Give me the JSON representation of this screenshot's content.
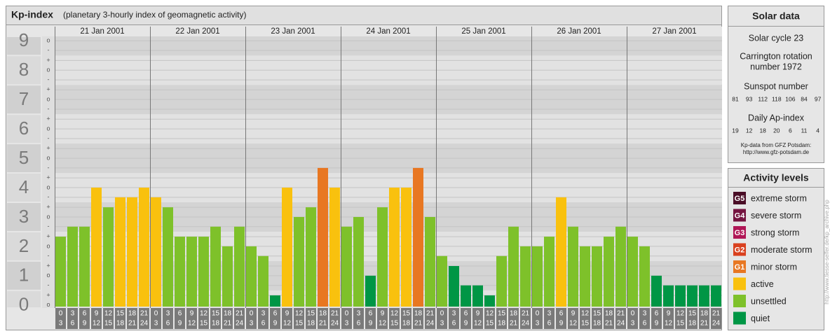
{
  "chart_data": {
    "type": "bar",
    "title": "Kp-index",
    "subtitle": "(planetary 3-hourly index of geomagnetic activity)",
    "categories": [
      "21 Jan 2001",
      "22 Jan 2001",
      "23 Jan 2001",
      "24 Jan 2001",
      "25 Jan 2001",
      "26 Jan 2001",
      "27 Jan 2001"
    ],
    "time_slots": [
      [
        0,
        3
      ],
      [
        3,
        6
      ],
      [
        6,
        9
      ],
      [
        9,
        12
      ],
      [
        12,
        15
      ],
      [
        15,
        18
      ],
      [
        18,
        21
      ],
      [
        21,
        24
      ]
    ],
    "values": [
      [
        2.33,
        2.67,
        2.67,
        4,
        3.33,
        3.67,
        3.67,
        4
      ],
      [
        3.67,
        3.33,
        2.33,
        2.33,
        2.33,
        2.67,
        2,
        2.67
      ],
      [
        2,
        1.67,
        0.33,
        4,
        3,
        3.33,
        4.67,
        4
      ],
      [
        2.67,
        3,
        1,
        3.33,
        4,
        4,
        4.67,
        3
      ],
      [
        1.67,
        1.33,
        0.67,
        0.67,
        0.33,
        1.67,
        2.67,
        2
      ],
      [
        2,
        2.33,
        3.67,
        2.67,
        2,
        2,
        2.33,
        2.67
      ],
      [
        2.33,
        2,
        1,
        0.67,
        0.67,
        0.67,
        0.67,
        0.67
      ]
    ],
    "colors": [
      [
        "#7ec12a",
        "#7ec12a",
        "#7ec12a",
        "#f9c10e",
        "#7ec12a",
        "#f9c10e",
        "#f9c10e",
        "#f9c10e"
      ],
      [
        "#f9c10e",
        "#7ec12a",
        "#7ec12a",
        "#7ec12a",
        "#7ec12a",
        "#7ec12a",
        "#7ec12a",
        "#7ec12a"
      ],
      [
        "#7ec12a",
        "#7ec12a",
        "#009645",
        "#f9c10e",
        "#7ec12a",
        "#7ec12a",
        "#e87722",
        "#f9c10e"
      ],
      [
        "#7ec12a",
        "#7ec12a",
        "#009645",
        "#7ec12a",
        "#f9c10e",
        "#f9c10e",
        "#e87722",
        "#7ec12a"
      ],
      [
        "#7ec12a",
        "#009645",
        "#009645",
        "#009645",
        "#009645",
        "#7ec12a",
        "#7ec12a",
        "#7ec12a"
      ],
      [
        "#7ec12a",
        "#7ec12a",
        "#f9c10e",
        "#7ec12a",
        "#7ec12a",
        "#7ec12a",
        "#7ec12a",
        "#7ec12a"
      ],
      [
        "#7ec12a",
        "#7ec12a",
        "#009645",
        "#009645",
        "#009645",
        "#009645",
        "#009645",
        "#009645"
      ]
    ],
    "ylim": [
      -0.1,
      9.15
    ],
    "yticks": [
      0,
      1,
      2,
      3,
      4,
      5,
      6,
      7,
      8,
      9
    ],
    "minor_yticks": [
      {
        "value": 9,
        "label": "o"
      },
      {
        "value": 8.67,
        "label": "-"
      },
      {
        "value": 8.33,
        "label": "+"
      },
      {
        "value": 8,
        "label": "o"
      },
      {
        "value": 7.67,
        "label": "-"
      },
      {
        "value": 7.33,
        "label": "+"
      },
      {
        "value": 7,
        "label": "o"
      },
      {
        "value": 6.67,
        "label": "-"
      },
      {
        "value": 6.33,
        "label": "+"
      },
      {
        "value": 6,
        "label": "o"
      },
      {
        "value": 5.67,
        "label": "-"
      },
      {
        "value": 5.33,
        "label": "+"
      },
      {
        "value": 5,
        "label": "o"
      },
      {
        "value": 4.67,
        "label": "-"
      },
      {
        "value": 4.33,
        "label": "+"
      },
      {
        "value": 4,
        "label": "o"
      },
      {
        "value": 3.67,
        "label": "-"
      },
      {
        "value": 3.33,
        "label": "+"
      },
      {
        "value": 3,
        "label": "o"
      },
      {
        "value": 2.67,
        "label": "-"
      },
      {
        "value": 2.33,
        "label": "+"
      },
      {
        "value": 2,
        "label": "o"
      },
      {
        "value": 1.67,
        "label": "-"
      },
      {
        "value": 1.33,
        "label": "+"
      },
      {
        "value": 1,
        "label": "o"
      },
      {
        "value": 0.67,
        "label": "-"
      },
      {
        "value": 0.33,
        "label": "+"
      },
      {
        "value": 0,
        "label": "o"
      }
    ],
    "grid": true
  },
  "solar_data": {
    "title": "Solar data",
    "solar_cycle": "Solar cycle 23",
    "carrington": [
      "Carrington rotation",
      "number 1972"
    ],
    "sunspot_label": "Sunspot number",
    "sunspot_numbers": [
      81,
      93,
      112,
      118,
      106,
      84,
      97
    ],
    "ap_label": "Daily Ap-index",
    "ap_values": [
      19,
      12,
      18,
      20,
      6,
      11,
      4
    ],
    "source": [
      "Kp-data from GFZ Potsdam:",
      "http://www.gfz-potsdam.de"
    ]
  },
  "activity_levels": {
    "title": "Activity levels",
    "items": [
      {
        "badge": "G5",
        "label": "extreme storm",
        "color": "#4a0d26"
      },
      {
        "badge": "G4",
        "label": "severe storm",
        "color": "#751440"
      },
      {
        "badge": "G3",
        "label": "strong storm",
        "color": "#b01656"
      },
      {
        "badge": "G2",
        "label": "moderate storm",
        "color": "#d9401e"
      },
      {
        "badge": "G1",
        "label": "minor storm",
        "color": "#e87722"
      },
      {
        "label": "active",
        "color": "#f9c10e"
      },
      {
        "label": "unsettled",
        "color": "#7ec12a"
      },
      {
        "label": "quiet",
        "color": "#009645"
      }
    ]
  },
  "watermark": "http://www.tiesse-selfer.de/kp_archive.php"
}
